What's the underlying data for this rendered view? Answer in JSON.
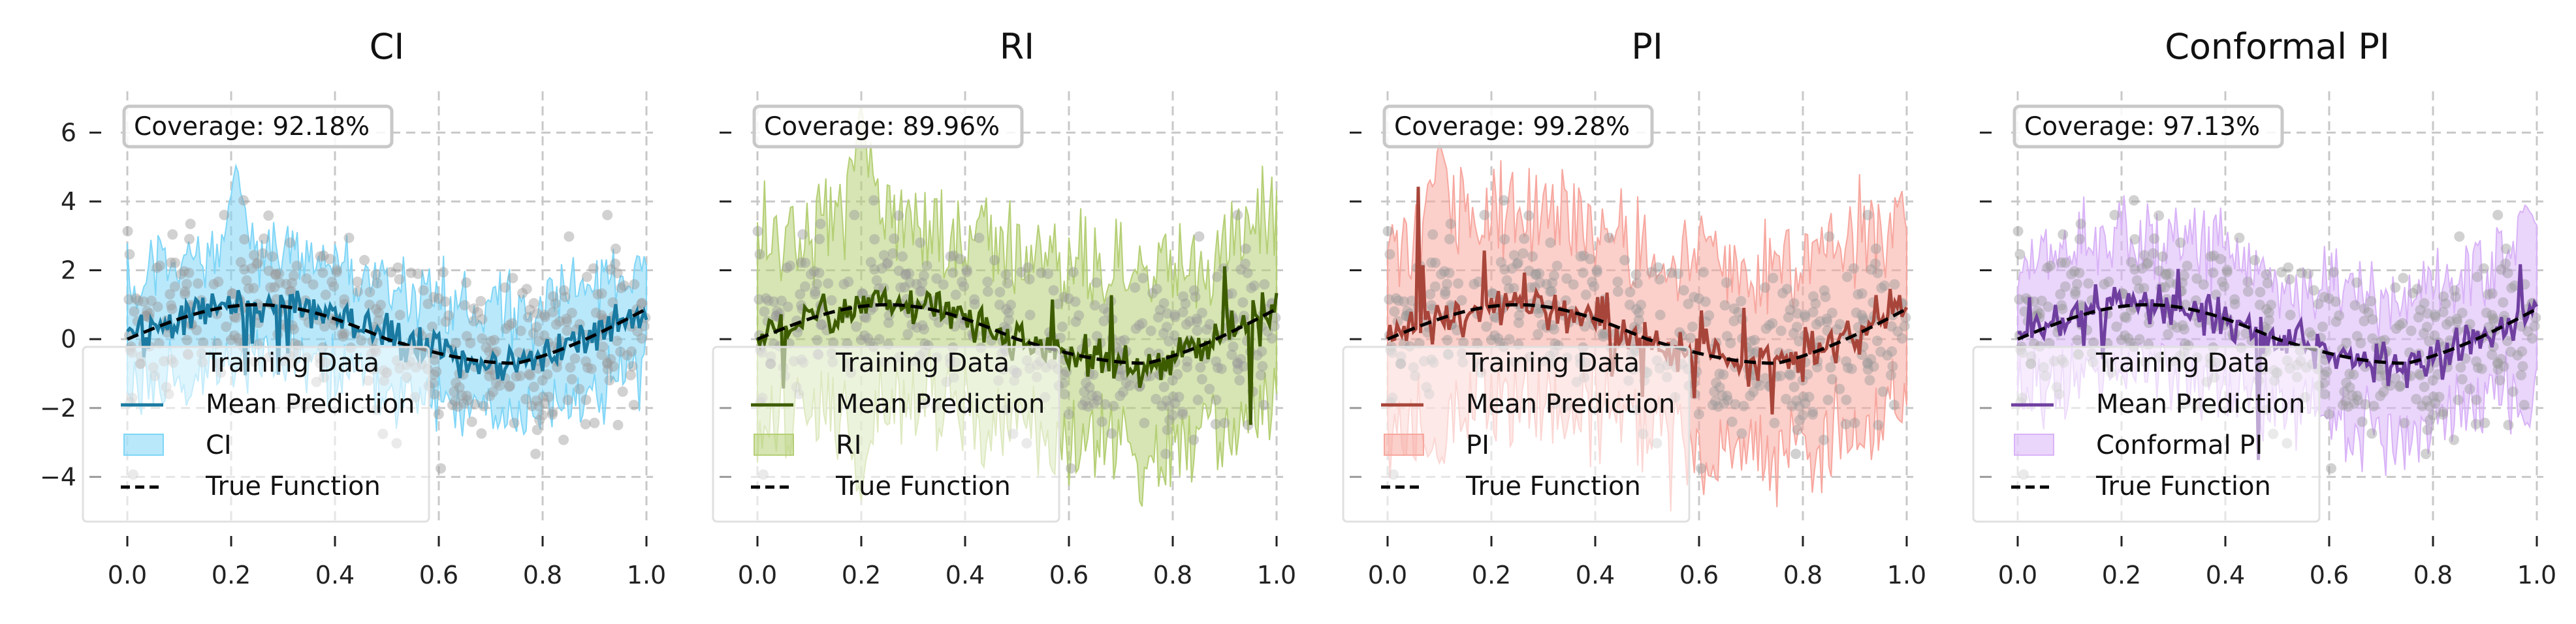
{
  "chart_data": [
    {
      "type": "line",
      "title": "CI",
      "coverage_text": "Coverage: 92.18%",
      "color": "#1a7aa1",
      "band_color": "#7fd6f7",
      "xlim": [
        0.0,
        1.0
      ],
      "ylim": [
        -5.3,
        7.2
      ],
      "xticks": [
        "0.0",
        "0.2",
        "0.4",
        "0.6",
        "0.8",
        "1.0"
      ],
      "yticks": [
        "6",
        "4",
        "2",
        "0",
        "−2",
        "−4"
      ],
      "legend_placement": "lower-left",
      "legend": [
        "Training Data",
        "Mean Prediction",
        "CI",
        "True Function"
      ],
      "band_half_width": 1.55,
      "band_extremes": [
        {
          "x": 0.21,
          "lower": -0.6,
          "upper": 5.1
        },
        {
          "x": 0.12,
          "lower": -1.8,
          "upper": 2.4
        }
      ],
      "true_function": {
        "x": [
          0.0,
          0.25,
          0.5,
          0.75,
          1.0
        ],
        "y": [
          0.0,
          1.0,
          0.0,
          -0.7,
          0.4
        ]
      }
    },
    {
      "type": "line",
      "title": "RI",
      "coverage_text": "Coverage: 89.96%",
      "color": "#3d5c00",
      "band_color": "#b5cf75",
      "xlim": [
        0.0,
        1.0
      ],
      "ylim": [
        -5.3,
        7.2
      ],
      "xticks": [
        "0.0",
        "0.2",
        "0.4",
        "0.6",
        "0.8",
        "1.0"
      ],
      "yticks": [],
      "legend_placement": "lower-left",
      "legend": [
        "Training Data",
        "Mean Prediction",
        "RI",
        "True Function"
      ],
      "band_half_width": 2.6,
      "band_extremes": [
        {
          "x": 0.2,
          "lower": -4.7,
          "upper": 6.8
        },
        {
          "x": 0.74,
          "lower": -4.0,
          "upper": 2.2
        }
      ],
      "true_function": {
        "x": [
          0.0,
          0.25,
          0.5,
          0.75,
          1.0
        ],
        "y": [
          0.0,
          1.0,
          0.0,
          -0.7,
          0.4
        ]
      }
    },
    {
      "type": "line",
      "title": "PI",
      "coverage_text": "Coverage: 99.28%",
      "color": "#a8453a",
      "band_color": "#f7a79f",
      "xlim": [
        0.0,
        1.0
      ],
      "ylim": [
        -5.3,
        7.2
      ],
      "xticks": [
        "0.0",
        "0.2",
        "0.4",
        "0.6",
        "0.8",
        "1.0"
      ],
      "yticks": [],
      "legend_placement": "lower-left",
      "legend": [
        "Training Data",
        "Mean Prediction",
        "PI",
        "True Function"
      ],
      "band_half_width": 2.7,
      "band_extremes": [
        {
          "x": 0.1,
          "lower": -3.6,
          "upper": 5.7
        },
        {
          "x": 0.62,
          "lower": -4.0,
          "upper": 3.0
        }
      ],
      "true_function": {
        "x": [
          0.0,
          0.25,
          0.5,
          0.75,
          1.0
        ],
        "y": [
          0.0,
          1.0,
          0.0,
          -0.7,
          0.4
        ]
      }
    },
    {
      "type": "line",
      "title": "Conformal PI",
      "coverage_text": "Coverage: 97.13%",
      "color": "#6f3fa0",
      "band_color": "#d9b3f7",
      "xlim": [
        0.0,
        1.0
      ],
      "ylim": [
        -5.3,
        7.2
      ],
      "xticks": [
        "0.0",
        "0.2",
        "0.4",
        "0.6",
        "0.8",
        "1.0"
      ],
      "yticks": [],
      "legend_placement": "lower-left",
      "legend": [
        "Training Data",
        "Mean Prediction",
        "Conformal PI",
        "True Function"
      ],
      "band_half_width": 1.9,
      "band_extremes": [
        {
          "x": 0.98,
          "lower": -2.6,
          "upper": 3.9
        }
      ],
      "true_function": {
        "x": [
          0.0,
          0.25,
          0.5,
          0.75,
          1.0
        ],
        "y": [
          0.0,
          1.0,
          0.0,
          -0.7,
          0.4
        ]
      }
    }
  ],
  "scatter_style": {
    "point_color": "#999999"
  }
}
